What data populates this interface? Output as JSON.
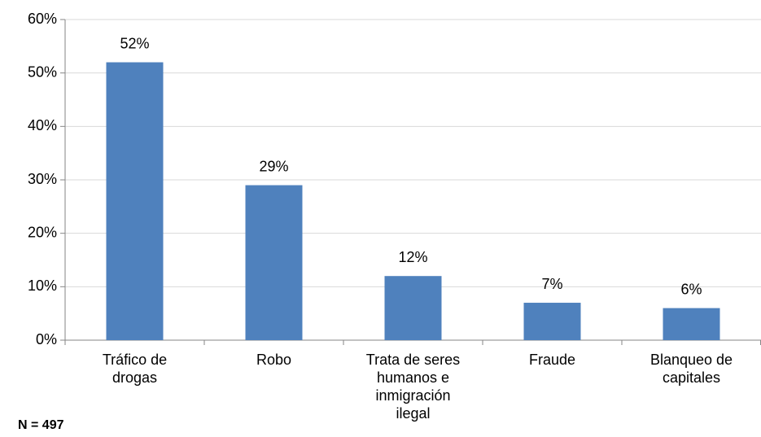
{
  "chart_data": {
    "type": "bar",
    "categories": [
      "Tráfico de drogas",
      "Robo",
      "Trata de seres humanos e inmigración ilegal",
      "Fraude",
      "Blanqueo de capitales"
    ],
    "values": [
      52,
      29,
      12,
      7,
      6
    ],
    "value_labels": [
      "52%",
      "29%",
      "12%",
      "7%",
      "6%"
    ],
    "color": "#4f81bd",
    "ylim": [
      0,
      60
    ],
    "yticks": [
      {
        "value": 0,
        "label": "0%"
      },
      {
        "value": 10,
        "label": "10%"
      },
      {
        "value": 20,
        "label": "20%"
      },
      {
        "value": 30,
        "label": "30%"
      },
      {
        "value": 40,
        "label": "40%"
      },
      {
        "value": 50,
        "label": "50%"
      },
      {
        "value": 60,
        "label": "60%"
      }
    ],
    "grid": true,
    "annotation": "N = 497"
  }
}
